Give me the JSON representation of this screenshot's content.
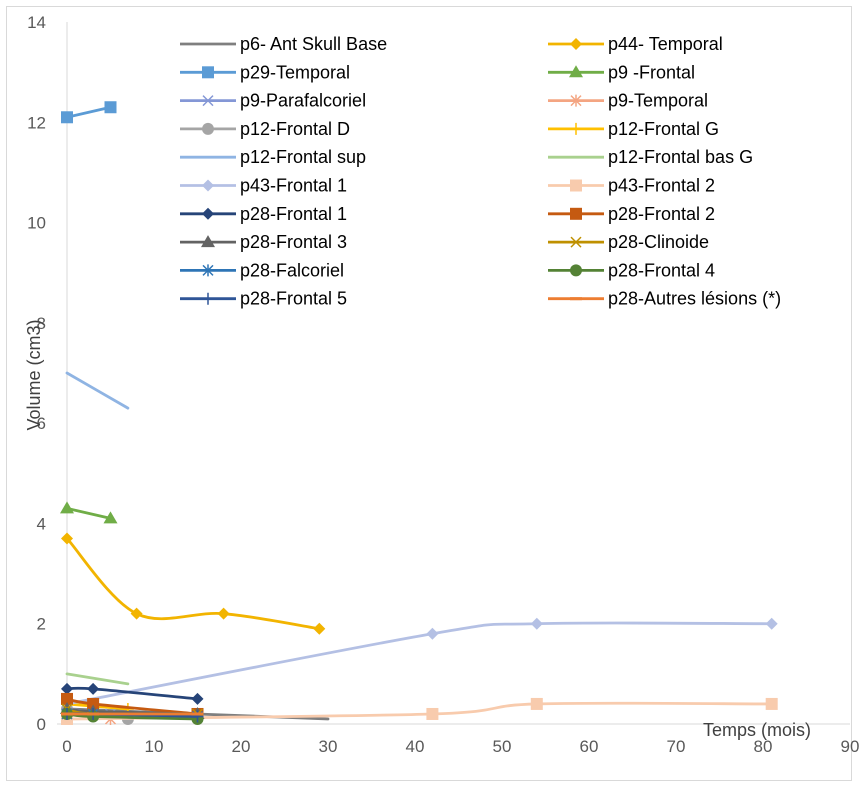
{
  "chart_data": {
    "type": "line",
    "title": "",
    "xlabel": "Temps (mois)",
    "ylabel": "Volume (cm3)",
    "xlim": [
      0,
      90
    ],
    "ylim": [
      0,
      14
    ],
    "x_ticks": [
      0,
      10,
      20,
      30,
      40,
      50,
      60,
      70,
      80,
      90
    ],
    "y_ticks": [
      0,
      2,
      4,
      6,
      8,
      10,
      12,
      14
    ],
    "grid": false,
    "legend_position": "top-right, inside plot, two columns",
    "series": [
      {
        "name": "p6- Ant Skull Base",
        "color": "#7f7f7f",
        "marker": "none",
        "x": [
          0,
          30
        ],
        "y": [
          0.3,
          0.1
        ]
      },
      {
        "name": "p44- Temporal",
        "color": "#f2b400",
        "marker": "diamond",
        "x": [
          0,
          8,
          18,
          29
        ],
        "y": [
          3.7,
          2.2,
          2.2,
          1.9
        ]
      },
      {
        "name": "p29-Temporal",
        "color": "#5b9bd5",
        "marker": "square",
        "x": [
          0,
          5
        ],
        "y": [
          12.1,
          12.3
        ]
      },
      {
        "name": "p9 -Frontal",
        "color": "#70ad47",
        "marker": "triangle",
        "x": [
          0,
          5
        ],
        "y": [
          4.3,
          4.1
        ]
      },
      {
        "name": "p9-Parafalcoriel",
        "color": "#8497d6",
        "marker": "x",
        "x": [
          0,
          5
        ],
        "y": [
          0.3,
          0.2
        ]
      },
      {
        "name": "p9-Temporal",
        "color": "#f4a582",
        "marker": "star",
        "x": [
          0,
          5
        ],
        "y": [
          0.2,
          0.1
        ]
      },
      {
        "name": "p12-Frontal D",
        "color": "#a5a5a5",
        "marker": "circle",
        "x": [
          0,
          7
        ],
        "y": [
          0.3,
          0.1
        ]
      },
      {
        "name": "p12-Frontal G",
        "color": "#ffc000",
        "marker": "plus",
        "x": [
          0,
          7
        ],
        "y": [
          0.4,
          0.3
        ]
      },
      {
        "name": "p12-Frontal sup",
        "color": "#8fb4e3",
        "marker": "none",
        "x": [
          0,
          7
        ],
        "y": [
          7.0,
          6.3
        ]
      },
      {
        "name": "p12-Frontal bas G",
        "color": "#a9d18e",
        "marker": "none",
        "x": [
          0,
          7
        ],
        "y": [
          1.0,
          0.8
        ]
      },
      {
        "name": "p43-Frontal 1",
        "color": "#b4c0e4",
        "marker": "diamond",
        "x": [
          0,
          42,
          54,
          81
        ],
        "y": [
          0.4,
          1.8,
          2.0,
          2.0
        ]
      },
      {
        "name": "p43-Frontal 2",
        "color": "#f8cbad",
        "marker": "square",
        "x": [
          0,
          42,
          54,
          81
        ],
        "y": [
          0.1,
          0.2,
          0.4,
          0.4
        ]
      },
      {
        "name": "p28-Frontal 1",
        "color": "#264478",
        "marker": "diamond",
        "x": [
          0,
          3,
          15
        ],
        "y": [
          0.7,
          0.7,
          0.5
        ]
      },
      {
        "name": "p28-Frontal 2",
        "color": "#c55a11",
        "marker": "square",
        "x": [
          0,
          3,
          15
        ],
        "y": [
          0.5,
          0.4,
          0.2
        ]
      },
      {
        "name": "p28-Frontal 3",
        "color": "#636363",
        "marker": "triangle",
        "x": [
          0,
          3,
          15
        ],
        "y": [
          0.3,
          0.25,
          0.2
        ]
      },
      {
        "name": "p28-Clinoide",
        "color": "#bf9000",
        "marker": "x",
        "x": [
          0,
          3,
          15
        ],
        "y": [
          0.3,
          0.2,
          0.2
        ]
      },
      {
        "name": "p28-Falcoriel",
        "color": "#2e75b6",
        "marker": "star",
        "x": [
          0,
          3,
          15
        ],
        "y": [
          0.2,
          0.2,
          0.15
        ]
      },
      {
        "name": "p28-Frontal 4",
        "color": "#548235",
        "marker": "circle",
        "x": [
          0,
          3,
          15
        ],
        "y": [
          0.2,
          0.15,
          0.1
        ]
      },
      {
        "name": "p28-Frontal 5",
        "color": "#2f5597",
        "marker": "plus",
        "x": [
          0,
          3,
          15
        ],
        "y": [
          0.2,
          0.2,
          0.15
        ]
      },
      {
        "name": "p28-Autres lésions (*)",
        "color": "#ed7d31",
        "marker": "dash",
        "x": [
          0,
          3,
          15
        ],
        "y": [
          0.2,
          0.2,
          0.2
        ]
      }
    ]
  }
}
